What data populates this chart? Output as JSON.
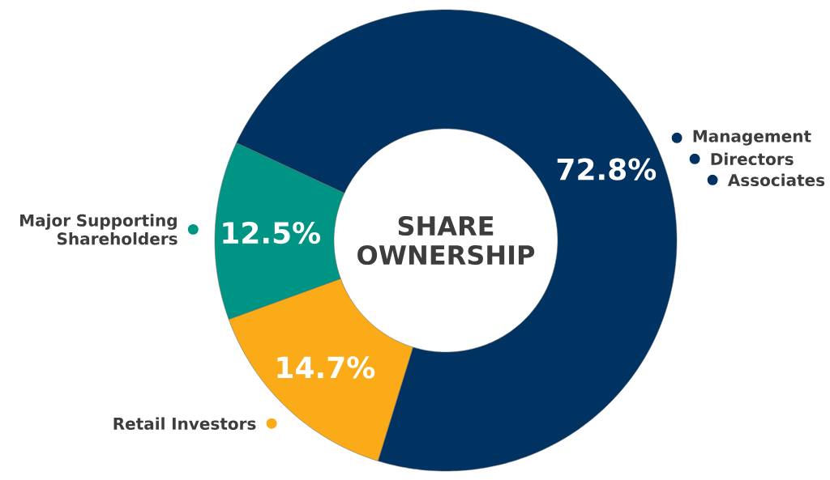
{
  "chart_data": {
    "type": "donut",
    "title": "SHARE OWNERSHIP",
    "categories": [
      "Management",
      "Retail Investors",
      "Major Supporting Shareholders"
    ],
    "values": [
      72.8,
      14.7,
      12.5
    ],
    "colors": [
      "#003262",
      "#fbab18",
      "#009485"
    ],
    "value_labels": [
      "72.8%",
      "14.7%",
      "12.5%"
    ],
    "annotations": [
      "Directors",
      "Associates"
    ],
    "legend": "left"
  }
}
